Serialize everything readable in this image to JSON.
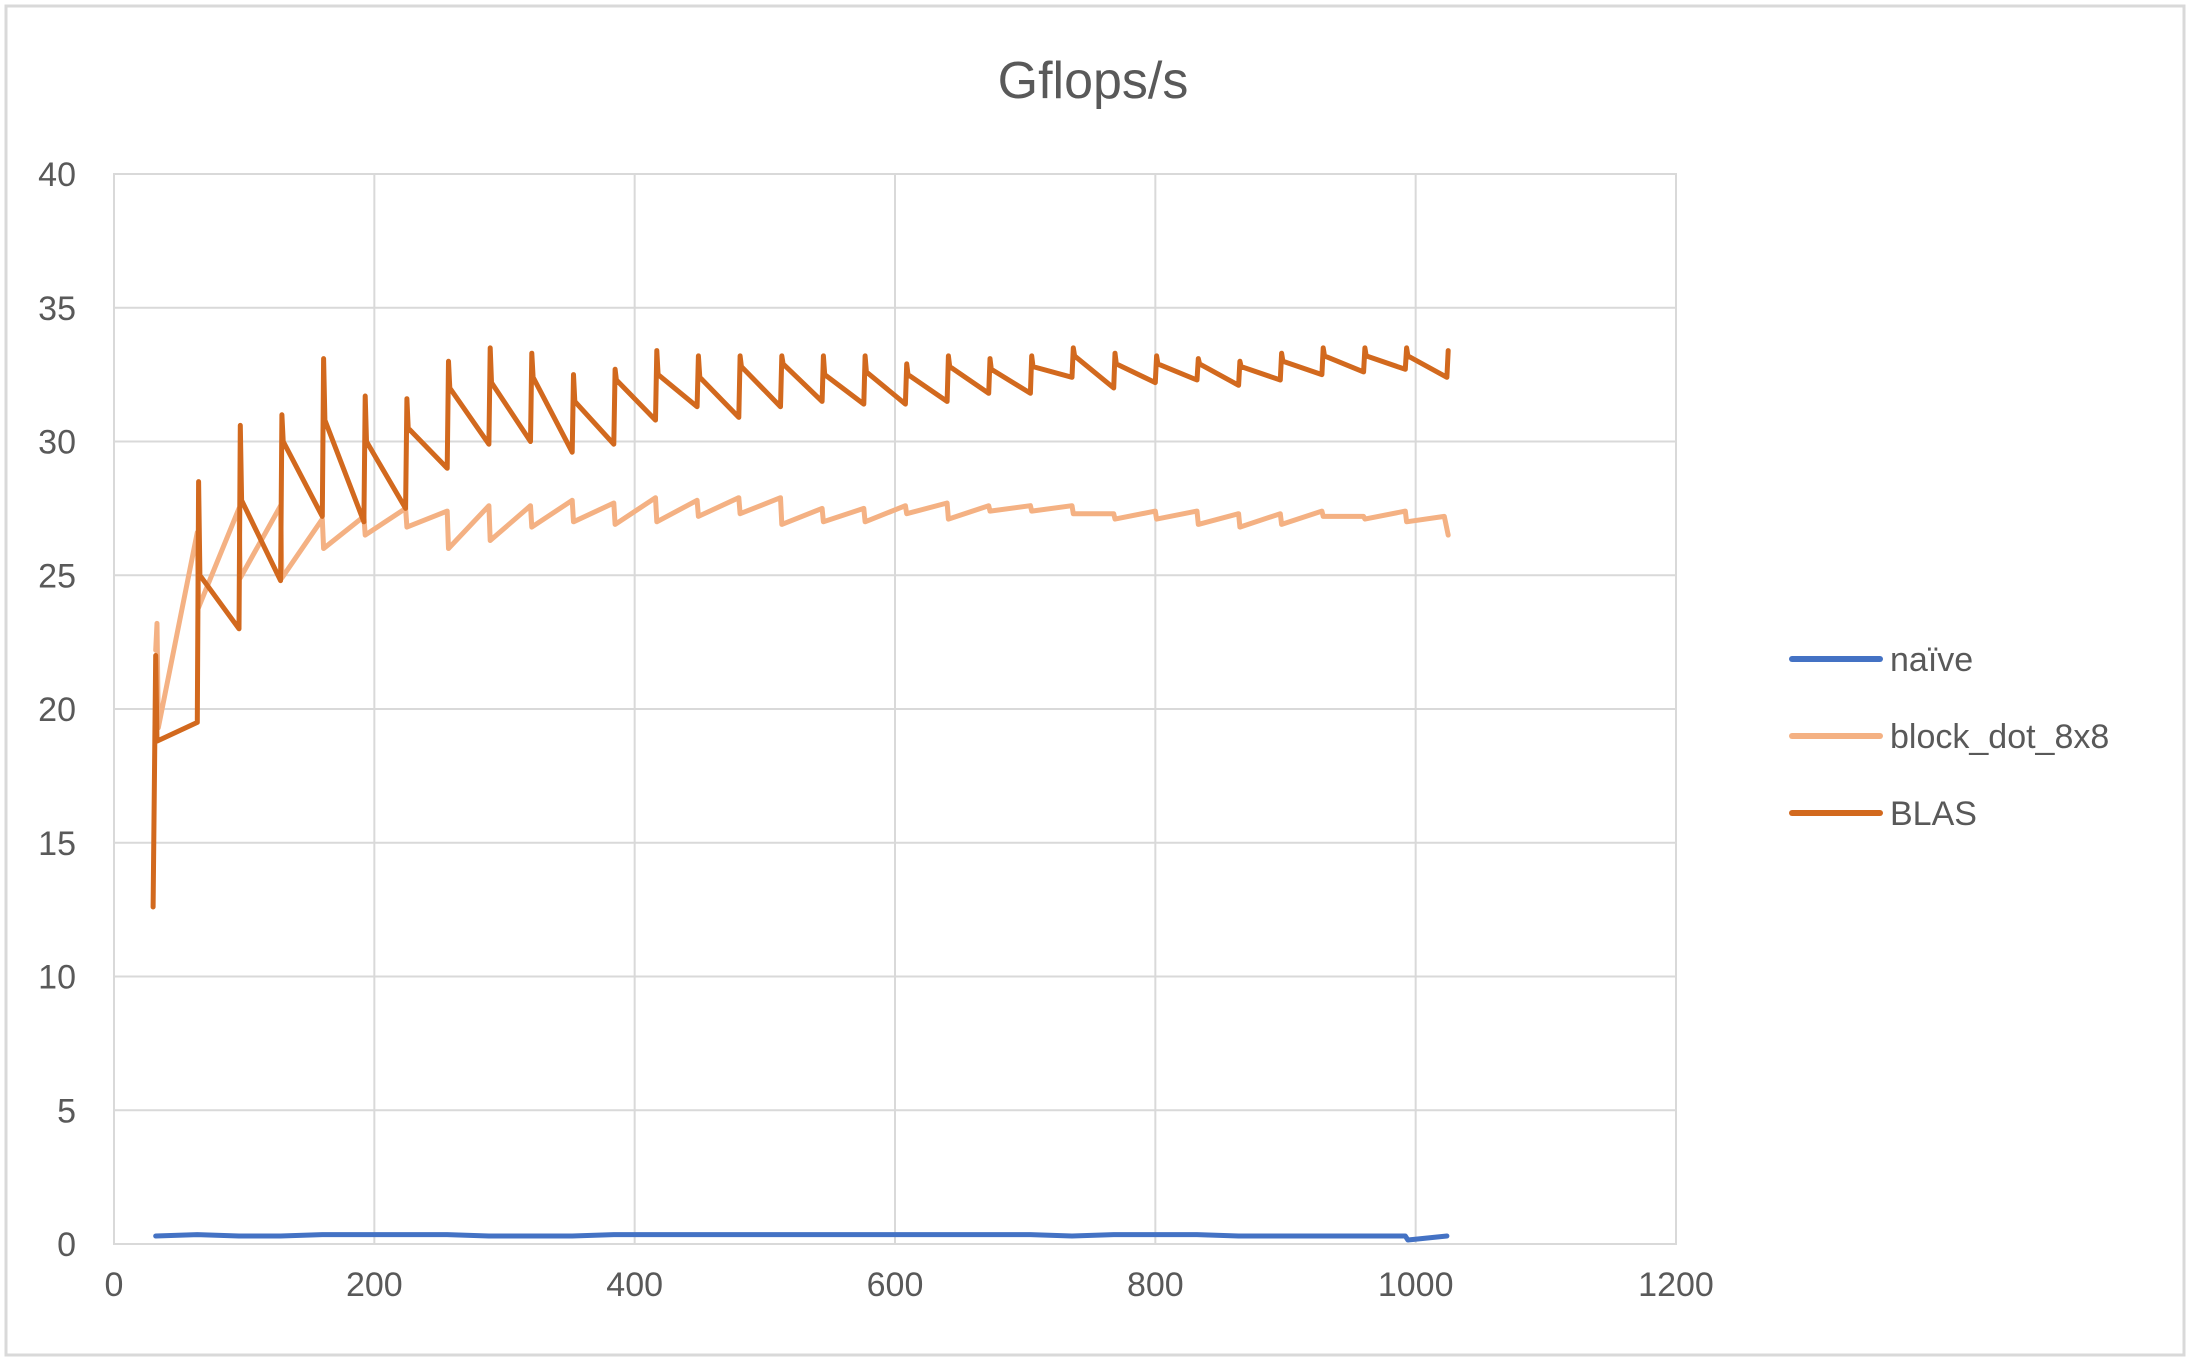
{
  "chart_data": {
    "type": "line",
    "title": "Gflops/s",
    "xlabel": "",
    "ylabel": "",
    "xlim": [
      0,
      1200
    ],
    "ylim": [
      0,
      40
    ],
    "x_ticks": [
      "0",
      "200",
      "400",
      "600",
      "800",
      "1000",
      "1200"
    ],
    "y_ticks": [
      "0",
      "5",
      "10",
      "15",
      "20",
      "25",
      "30",
      "35",
      "40"
    ],
    "grid": true,
    "legend": "right",
    "series": [
      {
        "name": "naïve",
        "color": "#4472c4",
        "points": [
          [
            32,
            0.3
          ],
          [
            64,
            0.35
          ],
          [
            96,
            0.3
          ],
          [
            128,
            0.3
          ],
          [
            160,
            0.35
          ],
          [
            192,
            0.35
          ],
          [
            224,
            0.35
          ],
          [
            256,
            0.35
          ],
          [
            288,
            0.3
          ],
          [
            320,
            0.3
          ],
          [
            352,
            0.3
          ],
          [
            384,
            0.35
          ],
          [
            416,
            0.35
          ],
          [
            448,
            0.35
          ],
          [
            480,
            0.35
          ],
          [
            512,
            0.35
          ],
          [
            544,
            0.35
          ],
          [
            576,
            0.35
          ],
          [
            608,
            0.35
          ],
          [
            640,
            0.35
          ],
          [
            672,
            0.35
          ],
          [
            704,
            0.35
          ],
          [
            736,
            0.3
          ],
          [
            768,
            0.35
          ],
          [
            800,
            0.35
          ],
          [
            832,
            0.35
          ],
          [
            864,
            0.3
          ],
          [
            896,
            0.3
          ],
          [
            928,
            0.3
          ],
          [
            960,
            0.3
          ],
          [
            992,
            0.3
          ],
          [
            994,
            0.15
          ],
          [
            1024,
            0.3
          ]
        ]
      },
      {
        "name": "block_dot_8x8",
        "color": "#f4b183",
        "points": [
          [
            32,
            22.2
          ],
          [
            33,
            23.2
          ],
          [
            34,
            19.3
          ],
          [
            64,
            26.6
          ],
          [
            65,
            23.8
          ],
          [
            96,
            27.5
          ],
          [
            97,
            24.9
          ],
          [
            128,
            27.6
          ],
          [
            129,
            24.9
          ],
          [
            160,
            27.1
          ],
          [
            161,
            26.0
          ],
          [
            192,
            27.2
          ],
          [
            193,
            26.5
          ],
          [
            224,
            27.5
          ],
          [
            225,
            26.8
          ],
          [
            256,
            27.4
          ],
          [
            257,
            26.0
          ],
          [
            288,
            27.6
          ],
          [
            289,
            26.3
          ],
          [
            320,
            27.6
          ],
          [
            321,
            26.8
          ],
          [
            352,
            27.8
          ],
          [
            353,
            27.0
          ],
          [
            384,
            27.7
          ],
          [
            385,
            26.9
          ],
          [
            416,
            27.9
          ],
          [
            417,
            27.0
          ],
          [
            448,
            27.8
          ],
          [
            449,
            27.2
          ],
          [
            480,
            27.9
          ],
          [
            481,
            27.3
          ],
          [
            512,
            27.9
          ],
          [
            513,
            26.9
          ],
          [
            544,
            27.5
          ],
          [
            545,
            27.0
          ],
          [
            576,
            27.5
          ],
          [
            577,
            27.0
          ],
          [
            608,
            27.6
          ],
          [
            609,
            27.3
          ],
          [
            640,
            27.7
          ],
          [
            641,
            27.1
          ],
          [
            672,
            27.6
          ],
          [
            673,
            27.4
          ],
          [
            704,
            27.6
          ],
          [
            705,
            27.4
          ],
          [
            736,
            27.6
          ],
          [
            737,
            27.3
          ],
          [
            768,
            27.3
          ],
          [
            769,
            27.1
          ],
          [
            800,
            27.4
          ],
          [
            801,
            27.1
          ],
          [
            832,
            27.4
          ],
          [
            833,
            26.9
          ],
          [
            864,
            27.3
          ],
          [
            865,
            26.8
          ],
          [
            896,
            27.3
          ],
          [
            897,
            26.9
          ],
          [
            928,
            27.4
          ],
          [
            929,
            27.2
          ],
          [
            960,
            27.2
          ],
          [
            961,
            27.1
          ],
          [
            992,
            27.4
          ],
          [
            993,
            27.0
          ],
          [
            1022,
            27.2
          ],
          [
            1025,
            26.5
          ]
        ]
      },
      {
        "name": "BLAS",
        "color": "#d2691e",
        "points": [
          [
            30,
            12.6
          ],
          [
            32,
            22.0
          ],
          [
            33,
            18.8
          ],
          [
            64,
            19.5
          ],
          [
            65,
            28.5
          ],
          [
            66,
            25.0
          ],
          [
            96,
            23.0
          ],
          [
            97,
            30.6
          ],
          [
            98,
            27.8
          ],
          [
            128,
            24.8
          ],
          [
            129,
            31.0
          ],
          [
            130,
            30.0
          ],
          [
            160,
            27.2
          ],
          [
            161,
            33.1
          ],
          [
            162,
            30.8
          ],
          [
            192,
            27.0
          ],
          [
            193,
            31.7
          ],
          [
            194,
            30.0
          ],
          [
            224,
            27.5
          ],
          [
            225,
            31.6
          ],
          [
            226,
            30.5
          ],
          [
            256,
            29.0
          ],
          [
            257,
            33.0
          ],
          [
            258,
            32.0
          ],
          [
            288,
            29.9
          ],
          [
            289,
            33.5
          ],
          [
            290,
            32.2
          ],
          [
            320,
            30.0
          ],
          [
            321,
            33.3
          ],
          [
            322,
            32.4
          ],
          [
            352,
            29.6
          ],
          [
            353,
            32.5
          ],
          [
            354,
            31.5
          ],
          [
            384,
            29.9
          ],
          [
            385,
            32.7
          ],
          [
            386,
            32.3
          ],
          [
            416,
            30.8
          ],
          [
            417,
            33.4
          ],
          [
            418,
            32.5
          ],
          [
            448,
            31.3
          ],
          [
            449,
            33.2
          ],
          [
            450,
            32.4
          ],
          [
            480,
            30.9
          ],
          [
            481,
            33.2
          ],
          [
            482,
            32.8
          ],
          [
            512,
            31.3
          ],
          [
            513,
            33.2
          ],
          [
            514,
            32.9
          ],
          [
            544,
            31.5
          ],
          [
            545,
            33.2
          ],
          [
            546,
            32.5
          ],
          [
            576,
            31.4
          ],
          [
            577,
            33.2
          ],
          [
            578,
            32.6
          ],
          [
            608,
            31.4
          ],
          [
            609,
            32.9
          ],
          [
            610,
            32.5
          ],
          [
            640,
            31.5
          ],
          [
            641,
            33.2
          ],
          [
            642,
            32.8
          ],
          [
            672,
            31.8
          ],
          [
            673,
            33.1
          ],
          [
            674,
            32.7
          ],
          [
            704,
            31.8
          ],
          [
            705,
            33.2
          ],
          [
            706,
            32.8
          ],
          [
            736,
            32.4
          ],
          [
            737,
            33.5
          ],
          [
            738,
            33.2
          ],
          [
            768,
            32.0
          ],
          [
            769,
            33.3
          ],
          [
            770,
            32.9
          ],
          [
            800,
            32.2
          ],
          [
            801,
            33.2
          ],
          [
            802,
            32.9
          ],
          [
            832,
            32.3
          ],
          [
            833,
            33.1
          ],
          [
            834,
            32.9
          ],
          [
            864,
            32.1
          ],
          [
            865,
            33.0
          ],
          [
            866,
            32.8
          ],
          [
            896,
            32.3
          ],
          [
            897,
            33.3
          ],
          [
            898,
            33.0
          ],
          [
            928,
            32.5
          ],
          [
            929,
            33.5
          ],
          [
            930,
            33.2
          ],
          [
            960,
            32.6
          ],
          [
            961,
            33.5
          ],
          [
            962,
            33.2
          ],
          [
            992,
            32.7
          ],
          [
            993,
            33.5
          ],
          [
            994,
            33.2
          ],
          [
            1024,
            32.4
          ],
          [
            1025,
            33.4
          ]
        ]
      }
    ]
  }
}
